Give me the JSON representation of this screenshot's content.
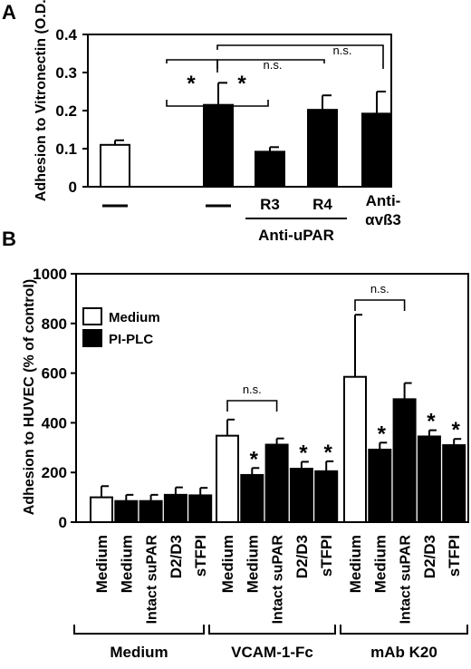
{
  "chart_data": [
    {
      "type": "bar",
      "panel": "A",
      "ylabel": "Adhesion to Vitronectin (O.D.)",
      "ylim": [
        0,
        0.4
      ],
      "yticks": [
        "0",
        "0.1",
        "0.2",
        "0.3",
        "0.4"
      ],
      "categories": [
        "—",
        "—",
        "R3",
        "R4",
        "Anti-αvß3"
      ],
      "fill": [
        "white",
        "black",
        "black",
        "black",
        "black"
      ],
      "values": [
        0.11,
        0.215,
        0.092,
        0.202,
        0.192
      ],
      "errors": [
        0.012,
        0.058,
        0.012,
        0.038,
        0.058
      ],
      "group_label": "Anti-uPAR",
      "annotations": {
        "star": "*",
        "ns": "n.s."
      }
    },
    {
      "type": "bar",
      "panel": "B",
      "ylabel": "Adhesion to HUVEC (% of control)",
      "ylim": [
        0,
        1000
      ],
      "yticks": [
        "0",
        "200",
        "400",
        "600",
        "800",
        "1000"
      ],
      "legend": [
        "Medium",
        "PI-PLC"
      ],
      "groups": [
        "Medium",
        "VCAM-1-Fc",
        "mAb K20"
      ],
      "categories": [
        "Medium",
        "Medium",
        "Intact suPAR",
        "D2/D3",
        "sTFPI"
      ],
      "series": [
        {
          "group": "Medium",
          "values": [
            100,
            85,
            85,
            110,
            108
          ],
          "errors": [
            45,
            25,
            25,
            30,
            30
          ],
          "fill": [
            "white",
            "black",
            "black",
            "black",
            "black"
          ],
          "stars": [
            false,
            false,
            false,
            false,
            false
          ]
        },
        {
          "group": "VCAM-1-Fc",
          "values": [
            348,
            190,
            312,
            215,
            205
          ],
          "errors": [
            65,
            28,
            25,
            28,
            40
          ],
          "fill": [
            "white",
            "black",
            "black",
            "black",
            "black"
          ],
          "stars": [
            false,
            true,
            false,
            true,
            true
          ]
        },
        {
          "group": "mAb K20",
          "values": [
            585,
            292,
            495,
            345,
            310
          ],
          "errors": [
            250,
            28,
            65,
            25,
            25
          ],
          "fill": [
            "white",
            "black",
            "black",
            "black",
            "black"
          ],
          "stars": [
            false,
            true,
            false,
            true,
            true
          ]
        }
      ],
      "annotations": {
        "star": "*",
        "ns": "n.s."
      }
    }
  ]
}
